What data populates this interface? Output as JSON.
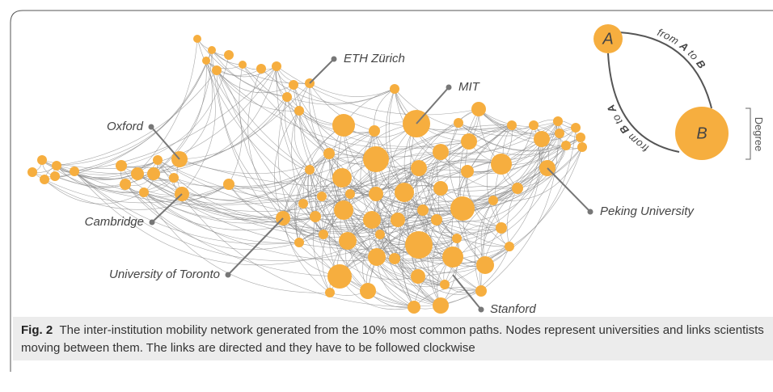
{
  "figure": {
    "labels": [
      "ETH Zürich",
      "MIT",
      "Oxford",
      "Cambridge",
      "University of Toronto",
      "Stanford",
      "Peking University"
    ],
    "legend": {
      "node_a": "A",
      "node_b": "B",
      "from_a_to_b": [
        "from ",
        "A",
        " to ",
        "B"
      ],
      "from_b_to_a": [
        "from ",
        "B",
        " to ",
        "A"
      ],
      "size": "Degree"
    }
  },
  "caption": {
    "label": "Fig. 2",
    "text": "The inter-institution mobility network generated from the 10% most common paths. Nodes represent universities and links scientists moving between them. The links are directed and they have to be followed clockwise"
  }
}
